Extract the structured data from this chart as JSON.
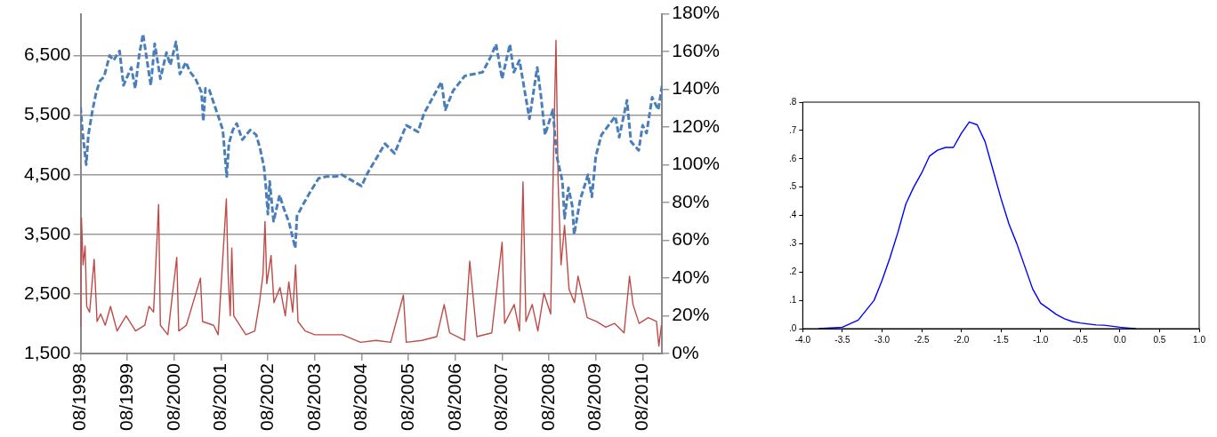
{
  "chart_data": [
    {
      "type": "line",
      "grid": "y",
      "xlim": [
        "1998-08",
        "2011-01"
      ],
      "xticks": [
        {
          "value": "1998-08",
          "label": "08/1998"
        },
        {
          "value": "1999-08",
          "label": "08/1999"
        },
        {
          "value": "2000-08",
          "label": "08/2000"
        },
        {
          "value": "2001-08",
          "label": "08/2001"
        },
        {
          "value": "2002-08",
          "label": "08/2002"
        },
        {
          "value": "2003-08",
          "label": "08/2003"
        },
        {
          "value": "2004-08",
          "label": "08/2004"
        },
        {
          "value": "2005-08",
          "label": "08/2005"
        },
        {
          "value": "2006-08",
          "label": "08/2006"
        },
        {
          "value": "2007-08",
          "label": "08/2007"
        },
        {
          "value": "2008-08",
          "label": "08/2008"
        },
        {
          "value": "2009-08",
          "label": "08/2009"
        },
        {
          "value": "2010-08",
          "label": "08/2010"
        }
      ],
      "ylim": [
        1500,
        7200
      ],
      "yticks": [
        {
          "value": 1500,
          "label": "1,500"
        },
        {
          "value": 2500,
          "label": "2,500"
        },
        {
          "value": 3500,
          "label": "3,500"
        },
        {
          "value": 4500,
          "label": "4,500"
        },
        {
          "value": 5500,
          "label": "5,500"
        },
        {
          "value": 6500,
          "label": "6,500"
        }
      ],
      "y2lim": [
        0,
        180
      ],
      "y2ticks": [
        {
          "value": 0,
          "label": "0%"
        },
        {
          "value": 20,
          "label": "20%"
        },
        {
          "value": 40,
          "label": "40%"
        },
        {
          "value": 60,
          "label": "60%"
        },
        {
          "value": 80,
          "label": "80%"
        },
        {
          "value": 100,
          "label": "100%"
        },
        {
          "value": 120,
          "label": "120%"
        },
        {
          "value": 140,
          "label": "140%"
        },
        {
          "value": 160,
          "label": "160%"
        },
        {
          "value": 180,
          "label": "180%"
        }
      ],
      "series": [
        {
          "color": "#4a7ebb",
          "line_style": "dashed",
          "x": [
            "1998-08-01",
            "1998-08-15",
            "1998-09-15",
            "1998-10-01",
            "1998-11-01",
            "1998-12-01",
            "1999-01-01",
            "1999-02-01",
            "1999-03-15",
            "1999-04-15",
            "1999-06-01",
            "1999-07-01",
            "1999-09-01",
            "1999-10-01",
            "1999-11-01",
            "1999-12-01",
            "2000-02-01",
            "2000-03-01",
            "2000-04-15",
            "2000-06-01",
            "2000-07-01",
            "2000-08-15",
            "2000-09-15",
            "2000-11-01",
            "2000-12-01",
            "2001-01-15",
            "2001-03-01",
            "2001-03-15",
            "2001-04-01",
            "2001-05-01",
            "2001-06-15",
            "2001-07-15",
            "2001-08-15",
            "2001-09-15",
            "2001-10-01",
            "2001-11-01",
            "2001-12-01",
            "2002-01-15",
            "2002-03-15",
            "2002-05-01",
            "2002-06-01",
            "2002-07-01",
            "2002-07-15",
            "2002-08-01",
            "2002-08-15",
            "2002-09-15",
            "2002-11-01",
            "2002-12-01",
            "2003-01-15",
            "2003-03-01",
            "2003-03-15",
            "2003-05-01",
            "2003-07-01",
            "2003-09-01",
            "2003-11-01",
            "2004-01-15",
            "2004-03-01",
            "2004-08-01",
            "2004-09-15",
            "2005-02-01",
            "2005-04-15",
            "2005-07-15",
            "2005-10-15",
            "2005-12-01",
            "2006-04-15",
            "2006-05-15",
            "2006-07-15",
            "2006-10-15",
            "2007-03-01",
            "2007-05-01",
            "2007-06-15",
            "2007-08-01",
            "2007-10-01",
            "2007-11-01",
            "2007-12-15",
            "2008-03-01",
            "2008-05-01",
            "2008-06-01",
            "2008-07-01",
            "2008-09-01",
            "2008-10-01",
            "2008-11-15",
            "2008-12-01",
            "2009-01-01",
            "2009-02-01",
            "2009-02-15",
            "2009-04-01",
            "2009-06-01",
            "2009-07-01",
            "2009-08-01",
            "2009-09-15",
            "2010-01-01",
            "2010-02-01",
            "2010-04-01",
            "2010-05-01",
            "2010-07-01",
            "2010-08-01",
            "2010-09-01",
            "2010-10-15",
            "2010-12-01",
            "2011-01-01"
          ],
          "values": [
            5640,
            5250,
            4670,
            5170,
            5560,
            5880,
            6080,
            6140,
            6500,
            6420,
            6580,
            6000,
            6300,
            5950,
            6500,
            6860,
            6000,
            6700,
            6110,
            6550,
            6340,
            6730,
            6190,
            6390,
            6230,
            6110,
            5880,
            5400,
            5950,
            5920,
            5640,
            5450,
            5250,
            4470,
            5020,
            5250,
            5360,
            5090,
            5250,
            5170,
            4940,
            4630,
            4310,
            3840,
            4390,
            3720,
            4160,
            3950,
            3690,
            3270,
            3810,
            4000,
            4230,
            4440,
            4470,
            4470,
            4500,
            4310,
            4520,
            5020,
            4860,
            5330,
            5220,
            5530,
            6060,
            5590,
            5910,
            6160,
            6220,
            6470,
            6690,
            6110,
            6690,
            6220,
            6420,
            5440,
            6300,
            5800,
            5170,
            5590,
            4810,
            4390,
            3770,
            4280,
            3970,
            3500,
            4080,
            4500,
            4130,
            4810,
            5170,
            5480,
            5130,
            5750,
            5060,
            4910,
            5330,
            5200,
            5800,
            5590,
            6000
          ]
        },
        {
          "color": "#be4b48",
          "axis": "y2",
          "x": [
            "1998-08-01",
            "1998-08-08",
            "1998-08-21",
            "1998-09-06",
            "1998-09-19",
            "1998-10-11",
            "1998-11-16",
            "1998-12-08",
            "1999-01-06",
            "1999-02-11",
            "1999-03-22",
            "1999-05-12",
            "1999-07-22",
            "1999-10-04",
            "1999-12-15",
            "2000-01-18",
            "2000-02-23",
            "2000-04-01",
            "2000-04-15",
            "2000-06-12",
            "2000-08-21",
            "2000-09-06",
            "2000-11-04",
            "2001-02-23",
            "2001-03-09",
            "2001-06-04",
            "2001-07-09",
            "2001-09-12",
            "2001-09-26",
            "2001-10-12",
            "2001-10-24",
            "2001-11-09",
            "2002-02-12",
            "2002-04-21",
            "2002-05-27",
            "2002-06-24",
            "2002-07-09",
            "2002-07-23",
            "2002-08-26",
            "2002-09-18",
            "2002-11-04",
            "2002-12-15",
            "2003-01-12",
            "2003-02-12",
            "2003-03-04",
            "2003-03-23",
            "2003-05-18",
            "2003-08-01",
            "2004-03-04",
            "2004-07-23",
            "2004-11-23",
            "2005-03-15",
            "2005-06-23",
            "2005-07-15",
            "2005-11-15",
            "2006-03-09",
            "2006-05-06",
            "2006-06-18",
            "2006-10-12",
            "2006-11-23",
            "2007-01-18",
            "2007-05-12",
            "2007-08-01",
            "2007-08-21",
            "2007-11-04",
            "2007-12-15",
            "2008-01-12",
            "2008-02-04",
            "2008-03-23",
            "2008-05-06",
            "2008-06-23",
            "2008-08-15",
            "2008-09-06",
            "2008-09-26",
            "2008-10-12",
            "2008-11-04",
            "2008-12-01",
            "2009-01-06",
            "2009-02-18",
            "2009-03-15",
            "2009-05-26",
            "2009-08-06",
            "2009-10-18",
            "2009-12-26",
            "2010-03-09",
            "2010-04-21",
            "2010-05-18",
            "2010-07-04",
            "2010-09-15",
            "2010-11-18",
            "2010-12-06",
            "2010-12-26"
          ],
          "values": [
            14,
            72,
            47,
            57,
            25,
            22,
            50,
            17,
            21,
            15,
            25,
            12,
            20,
            12,
            15,
            25,
            22,
            79,
            15,
            10,
            51,
            12,
            15,
            40,
            17,
            15,
            10,
            82,
            42,
            20,
            56,
            20,
            10,
            12,
            27,
            42,
            70,
            37,
            52,
            27,
            35,
            20,
            38,
            22,
            47,
            17,
            12,
            10,
            10,
            6,
            7,
            6,
            31,
            6,
            7,
            9,
            26,
            11,
            7,
            49,
            9,
            11,
            59,
            16,
            26,
            12,
            91,
            17,
            26,
            12,
            32,
            21,
            104,
            166,
            91,
            47,
            68,
            34,
            27,
            41,
            19,
            17,
            14,
            16,
            11,
            41,
            26,
            16,
            19,
            17,
            4,
            15
          ]
        }
      ]
    },
    {
      "type": "line",
      "xlim": [
        -4,
        1
      ],
      "xticks": [
        {
          "value": -4,
          "label": "-4.0"
        },
        {
          "value": -3.5,
          "label": "-3.5"
        },
        {
          "value": -3,
          "label": "-3.0"
        },
        {
          "value": -2.5,
          "label": "-2.5"
        },
        {
          "value": -2,
          "label": "-2.0"
        },
        {
          "value": -1.5,
          "label": "-1.5"
        },
        {
          "value": -1,
          "label": "-1.0"
        },
        {
          "value": -0.5,
          "label": "-0.5"
        },
        {
          "value": 0,
          "label": "0.0"
        },
        {
          "value": 0.5,
          "label": "0.5"
        },
        {
          "value": 1,
          "label": "1.0"
        }
      ],
      "ylim": [
        0,
        0.8
      ],
      "yticks": [
        {
          "value": 0,
          "label": ".0"
        },
        {
          "value": 0.1,
          "label": ".1"
        },
        {
          "value": 0.2,
          "label": ".2"
        },
        {
          "value": 0.3,
          "label": ".3"
        },
        {
          "value": 0.4,
          "label": ".4"
        },
        {
          "value": 0.5,
          "label": ".5"
        },
        {
          "value": 0.6,
          "label": ".6"
        },
        {
          "value": 0.7,
          "label": ".7"
        },
        {
          "value": 0.8,
          "label": ".8"
        }
      ],
      "series": [
        {
          "color": "#0000ff",
          "x": [
            -3.8,
            -3.5,
            -3.3,
            -3.1,
            -3.0,
            -2.9,
            -2.8,
            -2.7,
            -2.6,
            -2.5,
            -2.4,
            -2.3,
            -2.2,
            -2.1,
            -2.0,
            -1.9,
            -1.8,
            -1.7,
            -1.6,
            -1.5,
            -1.4,
            -1.3,
            -1.2,
            -1.1,
            -1.0,
            -0.9,
            -0.8,
            -0.7,
            -0.6,
            -0.5,
            -0.3,
            -0.2,
            0.0,
            0.2
          ],
          "values": [
            0,
            0.005,
            0.03,
            0.1,
            0.17,
            0.25,
            0.34,
            0.44,
            0.5,
            0.55,
            0.61,
            0.63,
            0.64,
            0.64,
            0.69,
            0.73,
            0.72,
            0.66,
            0.56,
            0.46,
            0.37,
            0.3,
            0.22,
            0.14,
            0.09,
            0.07,
            0.05,
            0.035,
            0.025,
            0.02,
            0.013,
            0.012,
            0.005,
            0
          ]
        }
      ]
    }
  ]
}
